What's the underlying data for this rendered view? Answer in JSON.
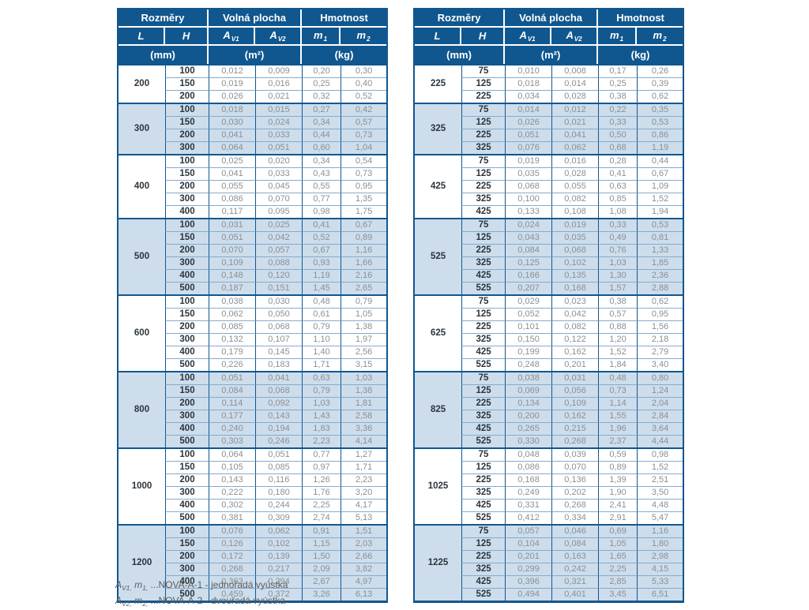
{
  "colors": {
    "header_bg": "#10578F",
    "band_bg": "#CDDDEB",
    "row_line": "#85ABCE",
    "label_text": "#2C353C",
    "value_text": "#8B8F93",
    "footnote_text": "#5A5F64"
  },
  "header": {
    "rozmery": "Rozměry",
    "volna_plocha": "Volná plocha",
    "hmotnost": "Hmotnost",
    "l": "L",
    "h": "H",
    "av_base": "A",
    "av1_sub": "V1",
    "av2_sub": "V2",
    "m_base": "m",
    "m1_sub": "1",
    "m2_sub": "2",
    "unit_mm": "(mm)",
    "unit_m2": "(m²)",
    "unit_kg": "(kg)"
  },
  "tables": [
    {
      "groups": [
        {
          "L": "200",
          "rows": [
            [
              "100",
              "0,012",
              "0,009",
              "0,20",
              "0,30"
            ],
            [
              "150",
              "0,019",
              "0,016",
              "0,25",
              "0,40"
            ],
            [
              "200",
              "0,026",
              "0,021",
              "0,32",
              "0,52"
            ]
          ]
        },
        {
          "L": "300",
          "rows": [
            [
              "100",
              "0,018",
              "0,015",
              "0,27",
              "0,42"
            ],
            [
              "150",
              "0,030",
              "0,024",
              "0,34",
              "0,57"
            ],
            [
              "200",
              "0,041",
              "0,033",
              "0,44",
              "0,73"
            ],
            [
              "300",
              "0,064",
              "0,051",
              "0,60",
              "1,04"
            ]
          ]
        },
        {
          "L": "400",
          "rows": [
            [
              "100",
              "0,025",
              "0,020",
              "0,34",
              "0,54"
            ],
            [
              "150",
              "0,041",
              "0,033",
              "0,43",
              "0,73"
            ],
            [
              "200",
              "0,055",
              "0,045",
              "0,55",
              "0,95"
            ],
            [
              "300",
              "0,086",
              "0,070",
              "0,77",
              "1,35"
            ],
            [
              "400",
              "0,117",
              "0,095",
              "0,98",
              "1,75"
            ]
          ]
        },
        {
          "L": "500",
          "rows": [
            [
              "100",
              "0,031",
              "0,025",
              "0,41",
              "0,67"
            ],
            [
              "150",
              "0,051",
              "0,042",
              "0,52",
              "0,89"
            ],
            [
              "200",
              "0,070",
              "0,057",
              "0,67",
              "1,16"
            ],
            [
              "300",
              "0,109",
              "0,088",
              "0,93",
              "1,66"
            ],
            [
              "400",
              "0,148",
              "0,120",
              "1,19",
              "2,16"
            ],
            [
              "500",
              "0,187",
              "0,151",
              "1,45",
              "2,65"
            ]
          ]
        },
        {
          "L": "600",
          "rows": [
            [
              "100",
              "0,038",
              "0,030",
              "0,48",
              "0,79"
            ],
            [
              "150",
              "0,062",
              "0,050",
              "0,61",
              "1,05"
            ],
            [
              "200",
              "0,085",
              "0,068",
              "0,79",
              "1,38"
            ],
            [
              "300",
              "0,132",
              "0,107",
              "1,10",
              "1,97"
            ],
            [
              "400",
              "0,179",
              "0,145",
              "1,40",
              "2,56"
            ],
            [
              "500",
              "0,226",
              "0,183",
              "1,71",
              "3,15"
            ]
          ]
        },
        {
          "L": "800",
          "rows": [
            [
              "100",
              "0,051",
              "0,041",
              "0,63",
              "1,03"
            ],
            [
              "150",
              "0,084",
              "0,068",
              "0,79",
              "1,38"
            ],
            [
              "200",
              "0,114",
              "0,092",
              "1,03",
              "1,81"
            ],
            [
              "300",
              "0,177",
              "0,143",
              "1,43",
              "2,58"
            ],
            [
              "400",
              "0,240",
              "0,194",
              "1,83",
              "3,36"
            ],
            [
              "500",
              "0,303",
              "0,246",
              "2,23",
              "4,14"
            ]
          ]
        },
        {
          "L": "1000",
          "rows": [
            [
              "100",
              "0,064",
              "0,051",
              "0,77",
              "1,27"
            ],
            [
              "150",
              "0,105",
              "0,085",
              "0,97",
              "1,71"
            ],
            [
              "200",
              "0,143",
              "0,116",
              "1,26",
              "2,23"
            ],
            [
              "300",
              "0,222",
              "0,180",
              "1,76",
              "3,20"
            ],
            [
              "400",
              "0,302",
              "0,244",
              "2,25",
              "4,17"
            ],
            [
              "500",
              "0,381",
              "0,309",
              "2,74",
              "5,13"
            ]
          ]
        },
        {
          "L": "1200",
          "rows": [
            [
              "100",
              "0,076",
              "0,062",
              "0,91",
              "1,51"
            ],
            [
              "150",
              "0,126",
              "0,102",
              "1,15",
              "2,03"
            ],
            [
              "200",
              "0,172",
              "0,139",
              "1,50",
              "2,66"
            ],
            [
              "300",
              "0,268",
              "0,217",
              "2,09",
              "3,82"
            ],
            [
              "400",
              "0,363",
              "0,294",
              "2,67",
              "4,97"
            ],
            [
              "500",
              "0,459",
              "0,372",
              "3,26",
              "6,13"
            ]
          ]
        }
      ]
    },
    {
      "groups": [
        {
          "L": "225",
          "rows": [
            [
              "75",
              "0,010",
              "0,008",
              "0,17",
              "0,26"
            ],
            [
              "125",
              "0,018",
              "0,014",
              "0,25",
              "0,39"
            ],
            [
              "225",
              "0,034",
              "0,028",
              "0,38",
              "0,62"
            ]
          ]
        },
        {
          "L": "325",
          "rows": [
            [
              "75",
              "0,014",
              "0,012",
              "0,22",
              "0,35"
            ],
            [
              "125",
              "0,026",
              "0,021",
              "0,33",
              "0,53"
            ],
            [
              "225",
              "0,051",
              "0,041",
              "0,50",
              "0,86"
            ],
            [
              "325",
              "0,076",
              "0,062",
              "0,68",
              "1,19"
            ]
          ]
        },
        {
          "L": "425",
          "rows": [
            [
              "75",
              "0,019",
              "0,016",
              "0,28",
              "0,44"
            ],
            [
              "125",
              "0,035",
              "0,028",
              "0,41",
              "0,67"
            ],
            [
              "225",
              "0,068",
              "0,055",
              "0,63",
              "1,09"
            ],
            [
              "325",
              "0,100",
              "0,082",
              "0,85",
              "1,52"
            ],
            [
              "425",
              "0,133",
              "0,108",
              "1,08",
              "1,94"
            ]
          ]
        },
        {
          "L": "525",
          "rows": [
            [
              "75",
              "0,024",
              "0,019",
              "0,33",
              "0,53"
            ],
            [
              "125",
              "0,043",
              "0,035",
              "0,49",
              "0,81"
            ],
            [
              "225",
              "0,084",
              "0,068",
              "0,76",
              "1,33"
            ],
            [
              "325",
              "0,125",
              "0,102",
              "1,03",
              "1,85"
            ],
            [
              "425",
              "0,166",
              "0,135",
              "1,30",
              "2,36"
            ],
            [
              "525",
              "0,207",
              "0,168",
              "1,57",
              "2,88"
            ]
          ]
        },
        {
          "L": "625",
          "rows": [
            [
              "75",
              "0,029",
              "0,023",
              "0,38",
              "0,62"
            ],
            [
              "125",
              "0,052",
              "0,042",
              "0,57",
              "0,95"
            ],
            [
              "225",
              "0,101",
              "0,082",
              "0,88",
              "1,56"
            ],
            [
              "325",
              "0,150",
              "0,122",
              "1,20",
              "2,18"
            ],
            [
              "425",
              "0,199",
              "0,162",
              "1,52",
              "2,79"
            ],
            [
              "525",
              "0,248",
              "0,201",
              "1,84",
              "3,40"
            ]
          ]
        },
        {
          "L": "825",
          "rows": [
            [
              "75",
              "0,038",
              "0,031",
              "0,48",
              "0,80"
            ],
            [
              "125",
              "0,069",
              "0,056",
              "0,73",
              "1,24"
            ],
            [
              "225",
              "0,134",
              "0,109",
              "1,14",
              "2,04"
            ],
            [
              "325",
              "0,200",
              "0,162",
              "1,55",
              "2,84"
            ],
            [
              "425",
              "0,265",
              "0,215",
              "1,96",
              "3,64"
            ],
            [
              "525",
              "0,330",
              "0,268",
              "2,37",
              "4,44"
            ]
          ]
        },
        {
          "L": "1025",
          "rows": [
            [
              "75",
              "0,048",
              "0,039",
              "0,59",
              "0,98"
            ],
            [
              "125",
              "0,086",
              "0,070",
              "0,89",
              "1,52"
            ],
            [
              "225",
              "0,168",
              "0,136",
              "1,39",
              "2,51"
            ],
            [
              "325",
              "0,249",
              "0,202",
              "1,90",
              "3,50"
            ],
            [
              "425",
              "0,331",
              "0,268",
              "2,41",
              "4,48"
            ],
            [
              "525",
              "0,412",
              "0,334",
              "2,91",
              "5,47"
            ]
          ]
        },
        {
          "L": "1225",
          "rows": [
            [
              "75",
              "0,057",
              "0,046",
              "0,69",
              "1,16"
            ],
            [
              "125",
              "0,104",
              "0,084",
              "1,05",
              "1,80"
            ],
            [
              "225",
              "0,201",
              "0,163",
              "1,65",
              "2,98"
            ],
            [
              "325",
              "0,299",
              "0,242",
              "2,25",
              "4,15"
            ],
            [
              "425",
              "0,396",
              "0,321",
              "2,85",
              "5,33"
            ],
            [
              "525",
              "0,494",
              "0,401",
              "3,45",
              "6,51"
            ]
          ]
        }
      ]
    }
  ],
  "footnotes": [
    {
      "sym1": "A",
      "sym1_sub": "V1,",
      "sym2": "m",
      "sym2_sub": "1,",
      "text": " ...NOVA-A-1 - jednořadá vyústka"
    },
    {
      "sym1": "A",
      "sym1_sub": "V2,",
      "sym2": "m",
      "sym2_sub": "2,",
      "text": " ...NOVA-A-2 - dvouřadá vyústka"
    }
  ]
}
